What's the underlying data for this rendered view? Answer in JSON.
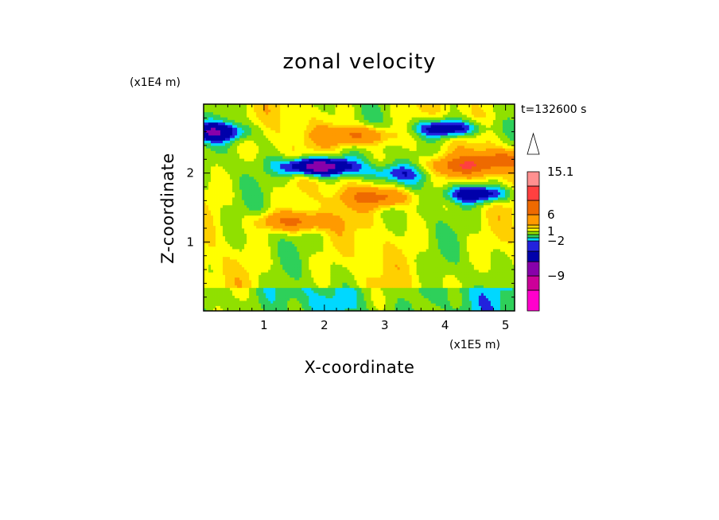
{
  "chart_data": {
    "type": "heatmap",
    "title": "zonal velocity",
    "xlabel": "X-coordinate",
    "ylabel": "Z-coordinate",
    "x_scale_label": "(x1E5 m)",
    "y_scale_label": "(x1E4 m)",
    "time_label": "t=132600 s",
    "xlim": [
      0,
      5.15
    ],
    "ylim": [
      0,
      3.0
    ],
    "x_ticks": [
      1,
      2,
      3,
      4,
      5
    ],
    "x_tick_labels": [
      "1",
      "2",
      "3",
      "4",
      "5"
    ],
    "y_ticks": [
      1,
      2
    ],
    "y_tick_labels": [
      "1",
      "2"
    ],
    "colorbar": {
      "levels": [
        -15,
        -12,
        -9,
        -6,
        -3,
        -2,
        -1,
        0,
        1,
        2,
        3,
        6,
        9,
        12,
        15.1
      ],
      "labeled_values": [
        "15.1",
        "6",
        "1",
        "-2",
        "-9"
      ],
      "colors": [
        "#ff00cc",
        "#cc0099",
        "#8800aa",
        "#0000aa",
        "#2222dd",
        "#00d8ff",
        "#2ed05a",
        "#90e000",
        "#ffff00",
        "#ffd000",
        "#ff9a00",
        "#ee6a00",
        "#ff4040",
        "#ff9090",
        "#ffc8c8"
      ],
      "extend_max": true
    },
    "field_features": [
      {
        "kind": "jet",
        "sign": "negative",
        "x": 1.9,
        "z": 2.1,
        "peak": -10
      },
      {
        "kind": "jet",
        "sign": "negative",
        "x": 3.15,
        "z": 2.0,
        "peak": -3
      },
      {
        "kind": "jet",
        "sign": "negative",
        "x": 4.05,
        "z": 2.65,
        "peak": -6
      },
      {
        "kind": "jet",
        "sign": "negative",
        "x": 0.15,
        "z": 2.6,
        "peak": -6
      },
      {
        "kind": "jet",
        "sign": "negative",
        "x": 4.55,
        "z": 1.7,
        "peak": -6
      },
      {
        "kind": "jet",
        "sign": "positive",
        "x": 2.5,
        "z": 2.55,
        "peak": 6
      },
      {
        "kind": "jet",
        "sign": "positive",
        "x": 2.9,
        "z": 1.65,
        "peak": 6
      },
      {
        "kind": "jet",
        "sign": "positive",
        "x": 1.5,
        "z": 1.3,
        "peak": 6
      },
      {
        "kind": "jet",
        "sign": "positive",
        "x": 4.3,
        "z": 2.1,
        "peak": 6
      },
      {
        "kind": "jet",
        "sign": "positive",
        "x": 5.0,
        "z": 2.2,
        "peak": 6
      }
    ]
  }
}
